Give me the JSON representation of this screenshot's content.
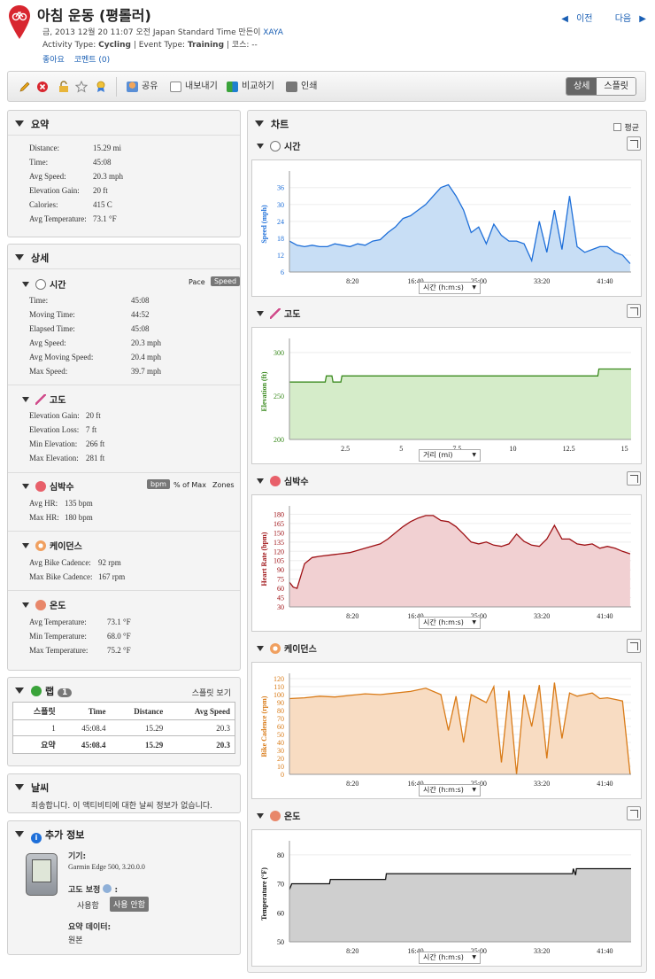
{
  "header": {
    "title": "아침 운동 (평롤러)",
    "date_line": "금, 2013 12월 20 11:07 오전 Japan Standard Time 만든이",
    "author": "XAYA",
    "activity_type_label": "Activity Type:",
    "activity_type": "Cycling",
    "event_type_label": "| Event Type:",
    "event_type": "Training",
    "course_label": "| 코스: --",
    "like": "좋아요",
    "comment": "코멘트 (0)",
    "prev": "이전",
    "next": "다음"
  },
  "toolbar": {
    "share": "공유",
    "export": "내보내기",
    "compare": "비교하기",
    "print": "인쇄",
    "view_detail": "상세",
    "view_split": "스플릿"
  },
  "summary": {
    "title": "요약",
    "rows": [
      {
        "label": "Distance:",
        "value": "15.29 mi"
      },
      {
        "label": "Time:",
        "value": "45:08"
      },
      {
        "label": "Avg Speed:",
        "value": "20.3 mph"
      },
      {
        "label": "Elevation Gain:",
        "value": "20 ft"
      },
      {
        "label": "Calories:",
        "value": "415 C"
      },
      {
        "label": "Avg Temperature:",
        "value": "73.1 °F"
      }
    ]
  },
  "detail": {
    "title": "상세",
    "time": {
      "title": "시간",
      "pace": "Pace",
      "speed": "Speed",
      "rows": [
        {
          "label": "Time:",
          "value": "45:08"
        },
        {
          "label": "Moving Time:",
          "value": "44:52"
        },
        {
          "label": "Elapsed Time:",
          "value": "45:08"
        },
        {
          "label": "Avg Speed:",
          "value": "20.3 mph"
        },
        {
          "label": "Avg Moving Speed:",
          "value": "20.4 mph"
        },
        {
          "label": "Max Speed:",
          "value": "39.7 mph"
        }
      ]
    },
    "elevation": {
      "title": "고도",
      "rows": [
        {
          "label": "Elevation Gain:",
          "value": "20 ft"
        },
        {
          "label": "Elevation Loss:",
          "value": "7 ft"
        },
        {
          "label": "Min Elevation:",
          "value": "266 ft"
        },
        {
          "label": "Max Elevation:",
          "value": "281 ft"
        }
      ]
    },
    "heart_rate": {
      "title": "심박수",
      "bpm": "bpm",
      "pct_max": "% of Max",
      "zones": "Zones",
      "rows": [
        {
          "label": "Avg HR:",
          "value": "135 bpm"
        },
        {
          "label": "Max HR:",
          "value": "180 bpm"
        }
      ]
    },
    "cadence": {
      "title": "케이던스",
      "rows": [
        {
          "label": "Avg Bike Cadence:",
          "value": "92 rpm"
        },
        {
          "label": "Max Bike Cadence:",
          "value": "167 rpm"
        }
      ]
    },
    "temperature": {
      "title": "온도",
      "rows": [
        {
          "label": "Avg Temperature:",
          "value": "73.1 °F"
        },
        {
          "label": "Min Temperature:",
          "value": "68.0 °F"
        },
        {
          "label": "Max Temperature:",
          "value": "75.2 °F"
        }
      ]
    }
  },
  "laps": {
    "title": "랩",
    "count": "1",
    "split_view": "스플릿 보기",
    "headers": [
      "스플릿",
      "Time",
      "Distance",
      "Avg Speed"
    ],
    "rows": [
      [
        "1",
        "45:08.4",
        "15.29",
        "20.3"
      ]
    ],
    "summary": [
      "요약",
      "45:08.4",
      "15.29",
      "20.3"
    ]
  },
  "weather": {
    "title": "날씨",
    "message": "죄송합니다. 이 액티비티에 대한 날씨 정보가 없습니다."
  },
  "more_info": {
    "title": "추가 정보",
    "device_label": "기기:",
    "device": "Garmin Edge 500, 3.20.0.0",
    "elev_corr_label": "고도 보정",
    "elev_on": "사용함",
    "elev_off": "사용 안함",
    "summary_data_label": "요약 데이터:",
    "summary_data": "원본"
  },
  "charts_panel": {
    "title": "차트",
    "average": "평균"
  },
  "chart_data": [
    {
      "type": "area",
      "title": "시간",
      "ylabel": "Speed (mph)",
      "xselect": "시간 (h:m:s)",
      "color": "#1e6fd9",
      "fill": "#c8def5",
      "xticks": [
        "8:20",
        "16:40",
        "25:00",
        "33:20",
        "41:40"
      ],
      "yticks": [
        6,
        12,
        18,
        24,
        30,
        36
      ],
      "ylim": [
        6,
        40
      ],
      "xlim": [
        0,
        45.13
      ],
      "x": [
        0,
        1,
        2,
        3,
        4,
        5,
        6,
        7,
        8,
        9,
        10,
        11,
        12,
        13,
        14,
        15,
        16,
        17,
        18,
        19,
        20,
        21,
        22,
        23,
        24,
        25,
        26,
        27,
        28,
        29,
        30,
        31,
        32,
        33,
        34,
        35,
        36,
        37,
        38,
        39,
        40,
        41,
        42,
        43,
        44,
        45
      ],
      "y": [
        17,
        15.5,
        15,
        15.5,
        15,
        15,
        16,
        15.5,
        15,
        16,
        15.5,
        17,
        17.5,
        20,
        22,
        25,
        26,
        28,
        30,
        33,
        36,
        37,
        33,
        28,
        20,
        22,
        16,
        23,
        19,
        17,
        17,
        16,
        10,
        24,
        13,
        28,
        14,
        33,
        15,
        13,
        14,
        15,
        15,
        13,
        12,
        9
      ]
    },
    {
      "type": "area",
      "title": "고도",
      "ylabel": "Elevation (ft)",
      "xselect": "거리 (mi)",
      "color": "#3a8a1e",
      "fill": "#d5ecc9",
      "xticks": [
        "2.5",
        "5",
        "7.5",
        "10",
        "12.5",
        "15"
      ],
      "yticks": [
        200,
        250,
        300
      ],
      "ylim": [
        200,
        310
      ],
      "xlim": [
        0,
        15.29
      ],
      "x": [
        0,
        1.6,
        1.65,
        1.9,
        1.95,
        2.3,
        2.35,
        13.8,
        13.85,
        15.29
      ],
      "y": [
        266,
        266,
        273,
        273,
        266,
        266,
        273,
        273,
        281,
        281
      ]
    },
    {
      "type": "area",
      "title": "심박수",
      "ylabel": "Heart Rate (bpm)",
      "xselect": "시간 (h:m:s)",
      "color": "#9e1014",
      "fill": "#f1d0d2",
      "xticks": [
        "8:20",
        "16:40",
        "25:00",
        "33:20",
        "41:40"
      ],
      "yticks": [
        30,
        45,
        60,
        75,
        90,
        105,
        120,
        135,
        150,
        165,
        180
      ],
      "ylim": [
        30,
        185
      ],
      "xlim": [
        0,
        45.13
      ],
      "x": [
        0,
        0.5,
        1,
        1.5,
        2,
        3,
        4,
        6,
        8,
        10,
        12,
        13,
        14,
        15,
        16,
        17,
        18,
        19,
        20,
        21,
        22,
        23,
        24,
        25,
        26,
        27,
        28,
        29,
        30,
        31,
        32,
        33,
        34,
        35,
        36,
        37,
        38,
        39,
        40,
        41,
        42,
        43,
        44,
        45
      ],
      "y": [
        70,
        62,
        60,
        80,
        100,
        110,
        112,
        115,
        118,
        125,
        132,
        140,
        150,
        160,
        168,
        174,
        178,
        178,
        170,
        168,
        160,
        148,
        135,
        132,
        135,
        130,
        128,
        132,
        148,
        136,
        130,
        128,
        140,
        162,
        140,
        140,
        132,
        130,
        132,
        125,
        128,
        125,
        120,
        116
      ]
    },
    {
      "type": "area",
      "title": "케이던스",
      "ylabel": "Bike Cadence (rpm)",
      "xselect": "시간 (h:m:s)",
      "color": "#d97b18",
      "fill": "#f8dcc2",
      "xticks": [
        "8:20",
        "16:40",
        "25:00",
        "33:20",
        "41:40"
      ],
      "yticks": [
        0,
        10,
        20,
        30,
        40,
        50,
        60,
        70,
        80,
        90,
        100,
        110,
        120
      ],
      "ylim": [
        0,
        120
      ],
      "xlim": [
        0,
        45.13
      ],
      "x": [
        0,
        2,
        4,
        6,
        8,
        10,
        12,
        14,
        16,
        18,
        20,
        21,
        22,
        23,
        24,
        25,
        26,
        27,
        28,
        29,
        30,
        31,
        32,
        33,
        34,
        35,
        36,
        37,
        38,
        39,
        40,
        41,
        42,
        43,
        44,
        45
      ],
      "y": [
        95,
        96,
        98,
        97,
        99,
        101,
        100,
        102,
        104,
        108,
        100,
        55,
        98,
        40,
        100,
        95,
        90,
        110,
        15,
        105,
        0,
        100,
        60,
        112,
        20,
        115,
        45,
        102,
        98,
        100,
        102,
        95,
        96,
        94,
        92,
        0
      ]
    },
    {
      "type": "line",
      "title": "온도",
      "ylabel": "Temperature (°F)",
      "xselect": "시간 (h:m:s)",
      "color": "#111111",
      "fill": "#cfcfcf",
      "xticks": [
        "8:20",
        "16:40",
        "25:00",
        "33:20",
        "41:40"
      ],
      "yticks": [
        50,
        60,
        70,
        80
      ],
      "ylim": [
        50,
        83
      ],
      "xlim": [
        0,
        45.13
      ],
      "x": [
        0,
        0.3,
        5.3,
        5.4,
        12.7,
        12.8,
        37.4,
        37.5,
        37.8,
        37.9,
        45.13
      ],
      "y": [
        68,
        70,
        70,
        71.5,
        71.5,
        73.5,
        73.5,
        75.2,
        73,
        75.2,
        75.2
      ]
    }
  ]
}
